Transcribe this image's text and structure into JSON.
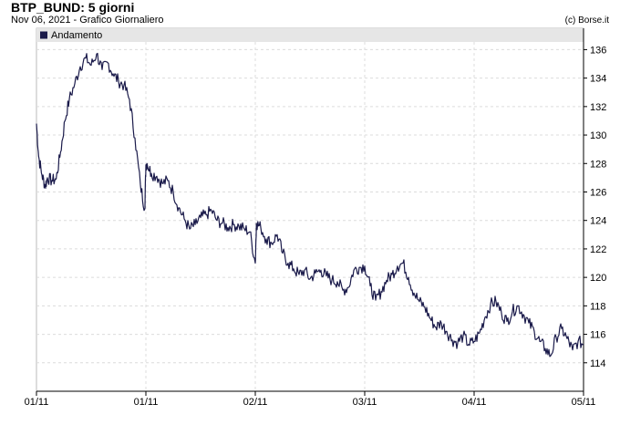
{
  "header": {
    "title": "BTP_BUND: 5 giorni",
    "subtitle": "Nov 06, 2021 - Grafico Giornaliero",
    "credit": "(c) Borse.it"
  },
  "colors": {
    "line": "#1a1a4a",
    "grid": "#dcdcdc",
    "legend_band": "#e6e6e6",
    "axis": "#000000"
  },
  "chart_data": {
    "type": "line",
    "legend": [
      {
        "label": "Andamento",
        "color": "#1a1a4a"
      }
    ],
    "y_ticks": [
      114,
      116,
      118,
      120,
      122,
      124,
      126,
      128,
      130,
      132,
      134,
      136
    ],
    "ylim": [
      112,
      137.5
    ],
    "x_ticks": [
      "01/11",
      "01/11",
      "02/11",
      "03/11",
      "04/11",
      "05/11"
    ],
    "x_tick_positions": [
      0,
      1,
      2,
      3,
      4,
      5
    ],
    "xlim": [
      0,
      5
    ],
    "series": [
      {
        "values_x": [
          0.0,
          0.02,
          0.05,
          0.08,
          0.1,
          0.14,
          0.18,
          0.22,
          0.26,
          0.3,
          0.35,
          0.4,
          0.45,
          0.5,
          0.55,
          0.6,
          0.65,
          0.7,
          0.75,
          0.8,
          0.85,
          0.9,
          0.95,
          0.99,
          1.0,
          1.01,
          1.05,
          1.1,
          1.15,
          1.2,
          1.25,
          1.3,
          1.35,
          1.4,
          1.45,
          1.5,
          1.55,
          1.6,
          1.65,
          1.7,
          1.75,
          1.8,
          1.85,
          1.9,
          1.95,
          2.0,
          2.01,
          2.05,
          2.1,
          2.15,
          2.2,
          2.25,
          2.3,
          2.35,
          2.4,
          2.45,
          2.5,
          2.55,
          2.6,
          2.65,
          2.7,
          2.75,
          2.8,
          2.85,
          2.9,
          2.95,
          3.0,
          3.05,
          3.1,
          3.15,
          3.2,
          3.25,
          3.3,
          3.35,
          3.4,
          3.45,
          3.5,
          3.55,
          3.6,
          3.65,
          3.7,
          3.75,
          3.8,
          3.85,
          3.9,
          3.95,
          4.0,
          4.05,
          4.1,
          4.15,
          4.2,
          4.25,
          4.3,
          4.35,
          4.4,
          4.45,
          4.5,
          4.55,
          4.6,
          4.65,
          4.7,
          4.75,
          4.8,
          4.85,
          4.9,
          4.95,
          5.0
        ],
        "values_y": [
          130.8,
          128.5,
          127.2,
          126.4,
          127.0,
          126.8,
          126.9,
          128.8,
          131.0,
          132.5,
          133.6,
          134.8,
          135.4,
          134.9,
          135.7,
          134.6,
          135.1,
          134.3,
          133.8,
          133.5,
          132.5,
          129.8,
          126.5,
          124.8,
          127.9,
          128.0,
          127.3,
          127.1,
          126.6,
          126.8,
          126.0,
          124.9,
          124.1,
          123.4,
          123.7,
          124.2,
          124.4,
          124.7,
          124.0,
          123.8,
          123.5,
          123.7,
          123.6,
          123.4,
          123.2,
          121.0,
          123.8,
          123.5,
          122.7,
          122.4,
          123.0,
          121.7,
          121.0,
          120.6,
          120.2,
          120.5,
          119.9,
          120.3,
          120.5,
          120.1,
          119.8,
          119.7,
          119.1,
          119.3,
          120.5,
          120.7,
          120.8,
          119.4,
          118.4,
          119.0,
          119.8,
          120.2,
          120.8,
          121.0,
          120.0,
          118.9,
          118.3,
          117.9,
          117.1,
          116.5,
          116.8,
          116.2,
          115.6,
          115.4,
          115.9,
          115.3,
          115.5,
          116.1,
          117.2,
          118.1,
          118.3,
          117.5,
          116.9,
          117.6,
          118.0,
          117.4,
          116.8,
          116.2,
          115.5,
          115.0,
          114.5,
          115.8,
          116.4,
          115.7,
          114.9,
          115.5,
          115.3
        ]
      }
    ]
  }
}
